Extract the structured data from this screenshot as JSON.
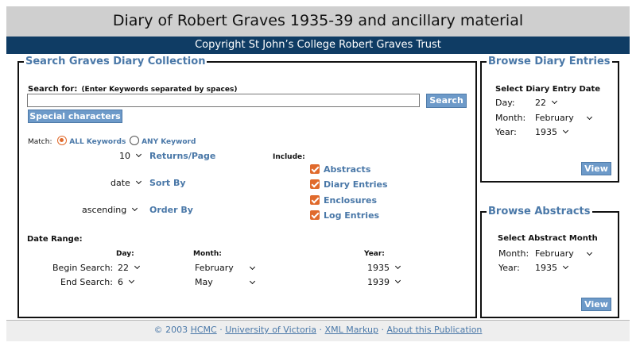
{
  "header": {
    "title": "Diary of Robert Graves 1935-39 and ancillary material",
    "copyright": "Copyright St John’s College Robert Graves Trust"
  },
  "search": {
    "legend": "Search Graves Diary Collection",
    "search_for_label": "Search for:",
    "search_for_hint": "(Enter Keywords separated by spaces)",
    "input_value": "",
    "search_button": "Search",
    "special_button": "Special characters",
    "match_label": "Match:",
    "match_all": "ALL Keywords",
    "match_any": "ANY Keyword",
    "returns_value": "10",
    "returns_label": "Returns/Page",
    "sort_value": "date",
    "sort_label": "Sort By",
    "order_value": "ascending",
    "order_label": "Order By",
    "include_label": "Include:",
    "include": [
      "Abstracts",
      "Diary Entries",
      "Enclosures",
      "Log Entries"
    ],
    "date_range_label": "Date Range:",
    "col_day": "Day:",
    "col_month": "Month:",
    "col_year": "Year:",
    "begin_label": "Begin Search:",
    "begin_day": "22",
    "begin_month": "February",
    "begin_year": "1935",
    "end_label": "End Search:",
    "end_day": "6",
    "end_month": "May",
    "end_year": "1939"
  },
  "browse_diary": {
    "legend": "Browse Diary Entries",
    "heading": "Select Diary Entry Date",
    "day_label": "Day:",
    "day_value": "22",
    "month_label": "Month:",
    "month_value": "February",
    "year_label": "Year:",
    "year_value": "1935",
    "view_button": "View"
  },
  "browse_abstracts": {
    "legend": "Browse Abstracts",
    "heading": "Select Abstract Month",
    "month_label": "Month:",
    "month_value": "February",
    "year_label": "Year:",
    "year_value": "1935",
    "view_button": "View"
  },
  "footer": {
    "copyright": "© 2003",
    "sep": "·",
    "links": [
      "HCMC",
      "University of Victoria",
      "XML Markup",
      "About this Publication"
    ]
  },
  "colors": {
    "accent": "#4a78a8",
    "header_bar": "#0f3c64",
    "checkbox": "#e06a2c"
  }
}
